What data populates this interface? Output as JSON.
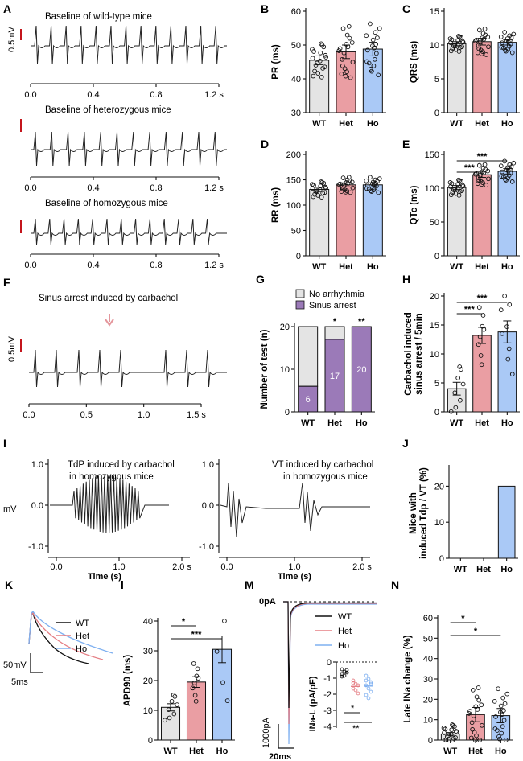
{
  "colors": {
    "wt": "#e4e4e4",
    "het": "#ea9ea3",
    "ho": "#aac9f6",
    "arrow": "#e4969c",
    "scalebar": "#c4151c",
    "arrest": "#9b7ab8",
    "no_arrhythmia": "#e4e4e4",
    "trace": "#222222"
  },
  "panels": {
    "A": {
      "label": "A",
      "scale": "0.5mV",
      "traces": [
        {
          "title": "Baseline of wild-type mice",
          "ticks": [
            "0.0",
            "0.4",
            "0.8",
            "1.2 s"
          ]
        },
        {
          "title": "Baseline of heterozygous mice",
          "ticks": [
            "0.0",
            "0.4",
            "0.8",
            "1.2 s"
          ]
        },
        {
          "title": "Baseline of homozygous mice",
          "ticks": [
            "0.0",
            "0.4",
            "0.8",
            "1.2 s"
          ]
        }
      ]
    },
    "F": {
      "label": "F",
      "title": "Sinus arrest induced by carbachol",
      "scale": "0.5mV",
      "ticks": [
        "0.0",
        "0.5",
        "1.0",
        "1.5 s"
      ]
    },
    "I": {
      "label": "I",
      "ylabel": "mV",
      "left": {
        "title1": "TdP induced by carbachol",
        "title2": "in homozygous mice",
        "yticks": [
          "1.0",
          "0.0",
          "-1.0"
        ],
        "xticks": [
          "0.0",
          "1.0",
          "2.0 s"
        ],
        "xlabel": "Time (s)"
      },
      "right": {
        "title1": "VT induced by carbachol",
        "title2": "in homozygous mice",
        "yticks": [
          "1.0",
          "0.0",
          "-1.0"
        ],
        "xticks": [
          "0.0",
          "1.0",
          "2.0 s"
        ],
        "xlabel": "Time (s)"
      }
    },
    "K": {
      "label": "K",
      "legend": [
        "WT",
        "Het",
        "Ho"
      ],
      "scale_v": "50mV",
      "scale_t": "5ms"
    },
    "M": {
      "label": "M",
      "legend": [
        "WT",
        "Het",
        "Ho"
      ],
      "zero": "0pA",
      "scale_i": "1000pA",
      "scale_t": "20ms",
      "inset": {
        "ylabel": "INa-L  (pA/pF)",
        "yticks": [
          "0",
          "-1",
          "-2",
          "-3",
          "-4"
        ],
        "sig": [
          "*",
          "**"
        ]
      }
    }
  },
  "chart_data": [
    {
      "panel": "B",
      "label": "B",
      "type": "bar",
      "ylabel": "PR (ms)",
      "categories": [
        "WT",
        "Het",
        "Ho"
      ],
      "values": [
        45.5,
        48,
        48.8
      ],
      "errors": [
        1.3,
        2.0,
        2.0
      ],
      "ylim": [
        30,
        60
      ],
      "yticks": [
        30,
        40,
        50,
        60
      ],
      "sig": []
    },
    {
      "panel": "C",
      "label": "C",
      "type": "bar",
      "ylabel": "QRS (ms)",
      "categories": [
        "WT",
        "Het",
        "Ho"
      ],
      "values": [
        10.2,
        10.5,
        10.4
      ],
      "errors": [
        0.3,
        0.5,
        0.4
      ],
      "ylim": [
        0,
        15
      ],
      "yticks": [
        0,
        5,
        10,
        15
      ],
      "sig": []
    },
    {
      "panel": "D",
      "label": "D",
      "type": "bar",
      "ylabel": "RR (ms)",
      "categories": [
        "WT",
        "Het",
        "Ho"
      ],
      "values": [
        131,
        140,
        140
      ],
      "errors": [
        4,
        4,
        4
      ],
      "ylim": [
        0,
        200
      ],
      "yticks": [
        0,
        50,
        100,
        150,
        200
      ],
      "sig": []
    },
    {
      "panel": "E",
      "label": "E",
      "type": "bar",
      "ylabel": "QTc (ms)",
      "categories": [
        "WT",
        "Het",
        "Ho"
      ],
      "values": [
        101,
        120,
        125
      ],
      "errors": [
        3,
        4,
        4
      ],
      "ylim": [
        0,
        150
      ],
      "yticks": [
        0,
        50,
        100,
        150
      ],
      "sig": [
        {
          "from": 0,
          "to": 1,
          "text": "***"
        },
        {
          "from": 0,
          "to": 2,
          "text": "***"
        }
      ]
    },
    {
      "panel": "G",
      "label": "G",
      "type": "bar",
      "stacked": true,
      "ylabel": "Number of test (n)",
      "categories": [
        "WT",
        "Het",
        "Ho"
      ],
      "series": [
        {
          "name": "Sinus arrest",
          "values": [
            6,
            17,
            20
          ]
        },
        {
          "name": "No arrhythmia",
          "values": [
            14,
            3,
            0
          ]
        }
      ],
      "ylim": [
        0,
        20
      ],
      "yticks": [
        0,
        10,
        20
      ],
      "sig": [
        "",
        "*",
        "**"
      ]
    },
    {
      "panel": "H",
      "label": "H",
      "type": "bar",
      "ylabel": "Carbachol induced sinus arrest / 5min",
      "ylabel1": "Carbachol induced",
      "ylabel2": "sinus arrest / 5min",
      "categories": [
        "WT",
        "Het",
        "Ho"
      ],
      "values": [
        4,
        13.2,
        13.8
      ],
      "errors": [
        1.1,
        1.4,
        1.9
      ],
      "ylim": [
        0,
        20
      ],
      "yticks": [
        0,
        5,
        10,
        15,
        20
      ],
      "sig": [
        {
          "from": 0,
          "to": 1,
          "text": "***"
        },
        {
          "from": 0,
          "to": 2,
          "text": "***"
        }
      ]
    },
    {
      "panel": "J",
      "label": "J",
      "type": "bar",
      "ylabel": "Mice with induced Tdp / VT (%)",
      "ylabel1": "Mice with",
      "ylabel2": "induced Tdp / VT (%)",
      "categories": [
        "WT",
        "Het",
        "Ho"
      ],
      "values": [
        0,
        0,
        20
      ],
      "ylim": [
        0,
        25
      ],
      "yticks": [
        0,
        10,
        20
      ],
      "sig": []
    },
    {
      "panel": "L",
      "label": "l",
      "type": "bar",
      "ylabel": "APD90 (ms)",
      "categories": [
        "WT",
        "Het",
        "Ho"
      ],
      "values": [
        11,
        19.5,
        30.5
      ],
      "errors": [
        1.2,
        1.8,
        4.5
      ],
      "ylim": [
        0,
        40
      ],
      "yticks": [
        0,
        10,
        20,
        30,
        40
      ],
      "sig": [
        {
          "from": 0,
          "to": 1,
          "text": "*"
        },
        {
          "from": 0,
          "to": 2,
          "text": "***"
        }
      ]
    },
    {
      "panel": "N",
      "label": "N",
      "type": "bar",
      "ylabel": "Late INa change (%)",
      "categories": [
        "WT",
        "Het",
        "Ho"
      ],
      "values": [
        3,
        12.5,
        12
      ],
      "errors": [
        0.7,
        3.5,
        3.5
      ],
      "ylim": [
        0,
        60
      ],
      "yticks": [
        0,
        10,
        20,
        30,
        40,
        50,
        60
      ],
      "sig": [
        {
          "from": 0,
          "to": 1,
          "text": "*"
        },
        {
          "from": 0,
          "to": 2,
          "text": "*"
        }
      ]
    }
  ]
}
